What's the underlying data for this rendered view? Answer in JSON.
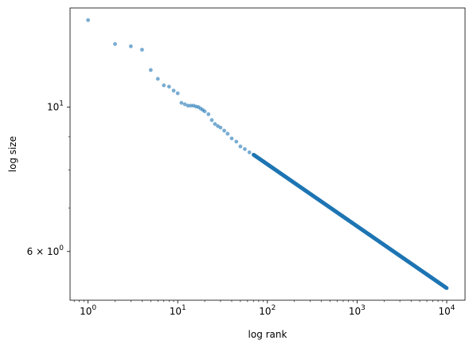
{
  "chart_data": {
    "type": "scatter",
    "title": "",
    "xlabel": "log rank",
    "ylabel": "log size",
    "xscale": "log",
    "yscale": "log",
    "xlim": [
      0.63,
      16000
    ],
    "ylim": [
      5.05,
      14.2
    ],
    "grid": false,
    "marker_color": "#1f77b4",
    "marker_alpha": 0.6,
    "x_ticks": [
      {
        "value": 1,
        "base": "10",
        "exp": "0"
      },
      {
        "value": 10,
        "base": "10",
        "exp": "1"
      },
      {
        "value": 100,
        "base": "10",
        "exp": "2"
      },
      {
        "value": 1000,
        "base": "10",
        "exp": "3"
      },
      {
        "value": 10000,
        "base": "10",
        "exp": "4"
      }
    ],
    "y_ticks": [
      {
        "value": 10,
        "text": "10",
        "sup": "1"
      },
      {
        "value": 6,
        "text": "6 × 10",
        "sup": "0"
      }
    ],
    "points": [
      [
        1,
        13.6
      ],
      [
        2,
        12.5
      ],
      [
        3,
        12.4
      ],
      [
        4,
        12.25
      ],
      [
        5,
        11.4
      ],
      [
        6,
        11.05
      ],
      [
        7,
        10.8
      ],
      [
        8,
        10.75
      ],
      [
        9,
        10.6
      ],
      [
        10,
        10.5
      ],
      [
        11,
        10.15
      ],
      [
        12,
        10.1
      ],
      [
        13,
        10.05
      ],
      [
        14,
        10.05
      ],
      [
        15,
        10.05
      ],
      [
        16,
        10.02
      ],
      [
        17,
        10.0
      ],
      [
        18,
        9.95
      ],
      [
        19,
        9.9
      ],
      [
        20,
        9.85
      ],
      [
        22,
        9.75
      ],
      [
        24,
        9.55
      ],
      [
        26,
        9.42
      ],
      [
        28,
        9.35
      ],
      [
        30,
        9.3
      ],
      [
        33,
        9.2
      ],
      [
        36,
        9.1
      ],
      [
        40,
        8.95
      ],
      [
        45,
        8.85
      ],
      [
        50,
        8.7
      ],
      [
        56,
        8.62
      ],
      [
        63,
        8.52
      ],
      [
        70,
        8.45
      ]
    ],
    "series": [
      {
        "x_start": 70,
        "x_end": 10000,
        "y_start": 8.45,
        "y_end": 5.27,
        "n": 1200
      }
    ]
  }
}
